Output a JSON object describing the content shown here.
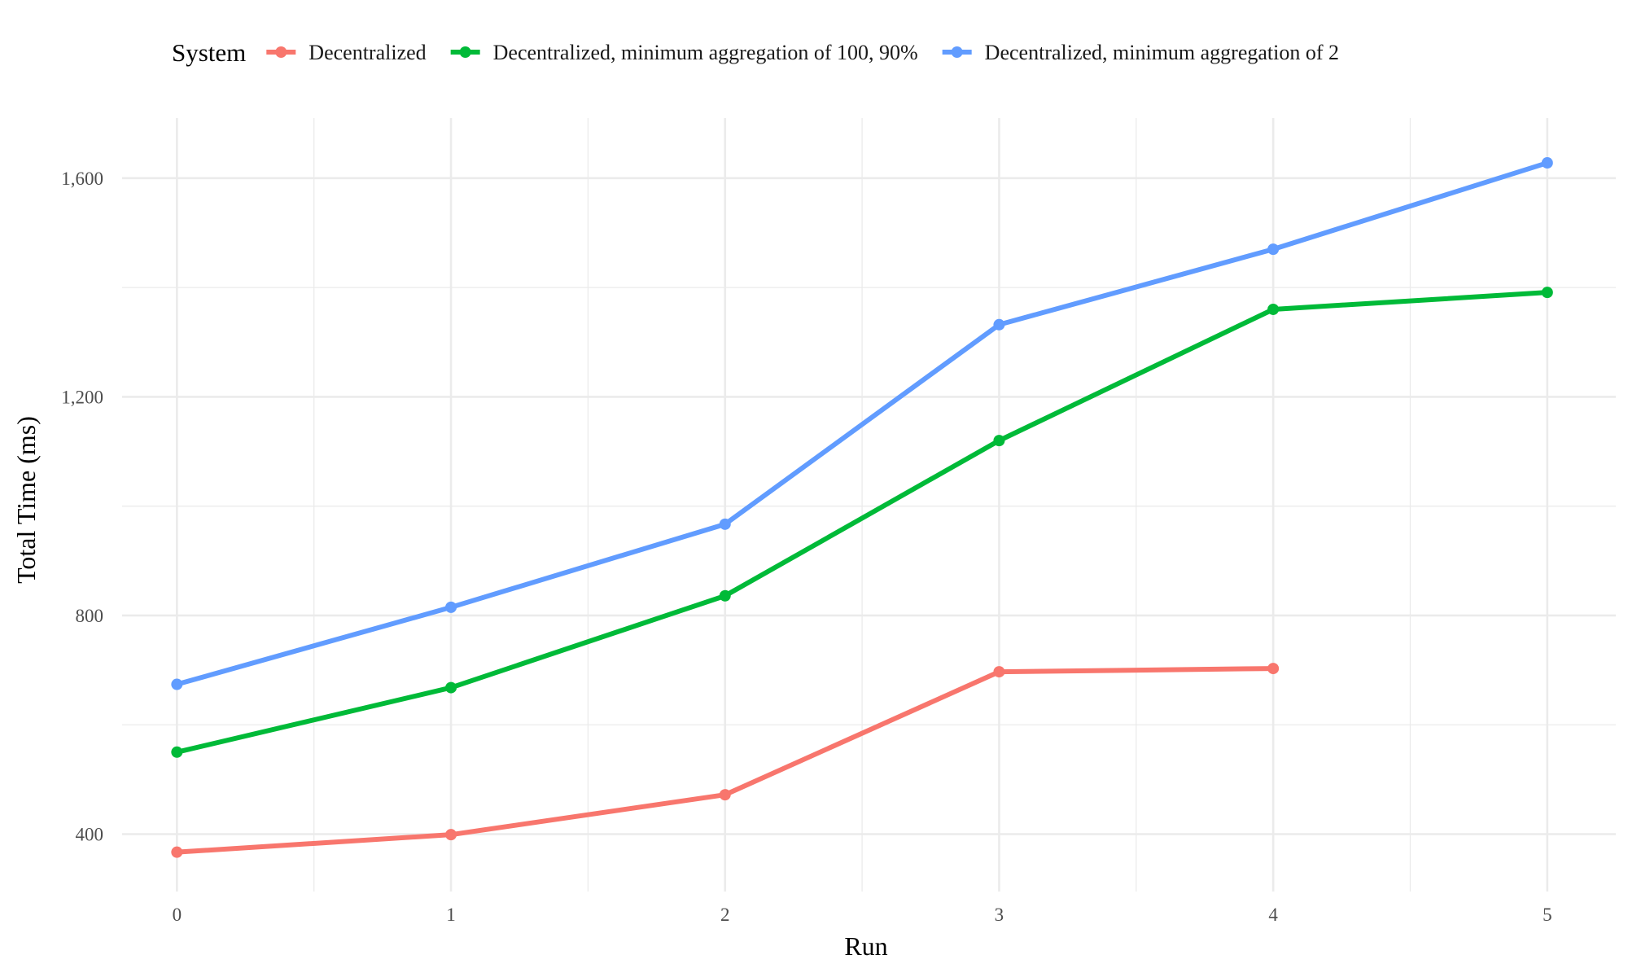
{
  "chart_data": {
    "type": "line",
    "title": "",
    "xlabel": "Run",
    "ylabel": "Total Time (ms)",
    "legend_title": "System",
    "legend_position": "top",
    "grid": true,
    "x": [
      0,
      1,
      2,
      3,
      4,
      5
    ],
    "xlim": [
      -0.2,
      5.25
    ],
    "ylim": [
      295,
      1710
    ],
    "x_ticks": [
      0,
      1,
      2,
      3,
      4,
      5
    ],
    "x_tick_labels": [
      "0",
      "1",
      "2",
      "3",
      "4",
      "5"
    ],
    "y_ticks": [
      400,
      800,
      1200,
      1600
    ],
    "y_tick_labels": [
      "400",
      "800",
      "1,200",
      "1,600"
    ],
    "series": [
      {
        "name": "Decentralized",
        "color": "#F8766D",
        "values": [
          367,
          399,
          472,
          697,
          703,
          null
        ]
      },
      {
        "name": "Decentralized, minimum aggregation of 100, 90%",
        "color": "#00BA38",
        "values": [
          550,
          668,
          836,
          1120,
          1360,
          1391
        ]
      },
      {
        "name": "Decentralized, minimum aggregation of 2",
        "color": "#619CFF",
        "values": [
          674,
          815,
          967,
          1332,
          1470,
          1628
        ]
      }
    ]
  }
}
